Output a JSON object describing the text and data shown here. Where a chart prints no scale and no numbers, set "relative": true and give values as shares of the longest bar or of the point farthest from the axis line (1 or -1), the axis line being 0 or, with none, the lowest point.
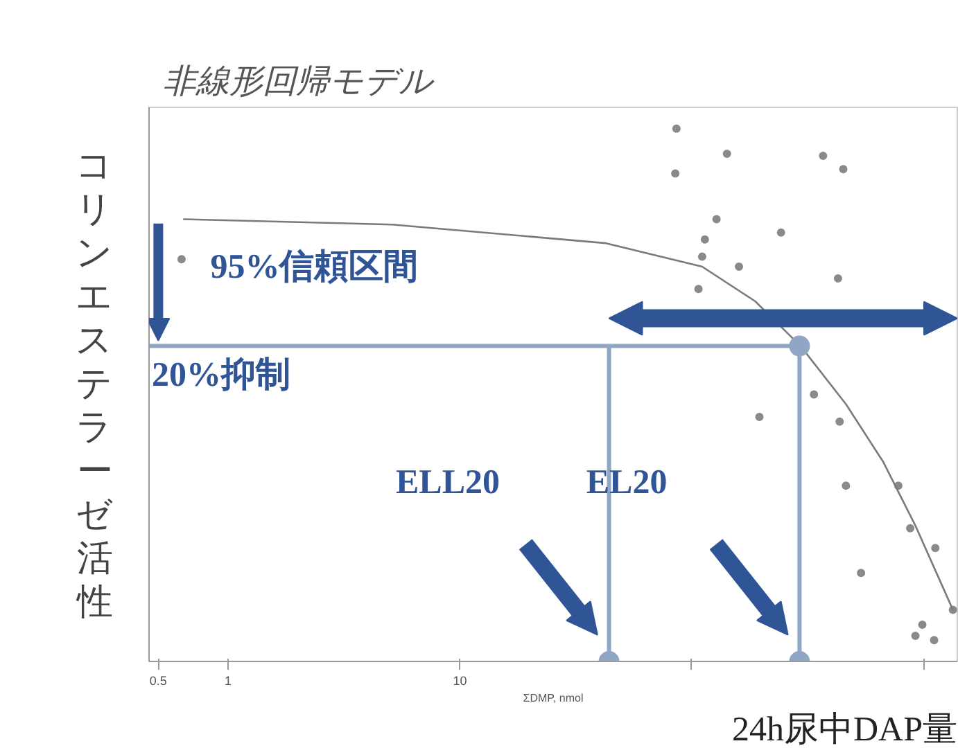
{
  "chart_data": {
    "type": "scatter",
    "title": "非線形回帰モデル",
    "xlabel": "ΣDMP, nmol",
    "ylabel": "コリンエステラーゼ活性",
    "relative": true,
    "log": "x",
    "grid": false,
    "marker": "circle",
    "xlim": [
      0.456,
      1400
    ],
    "xticks": [
      0.5,
      1,
      10,
      {
        "value": 100,
        "label": null
      },
      {
        "value": 1000,
        "label": null
      }
    ],
    "series": [
      {
        "color": "#8a8a8a",
        "x": [
          0.63,
          86,
          85,
          142,
          369,
          451,
          128,
          114,
          243,
          111,
          160,
          428,
          107,
          337,
          196,
          435,
          463,
          779,
          877,
          1125,
          538,
          1340,
          989,
          923,
          1112
        ],
        "values": [
          0.755,
          1.0,
          0.916,
          0.953,
          0.949,
          0.924,
          0.83,
          0.792,
          0.805,
          0.76,
          0.741,
          0.719,
          0.699,
          0.501,
          0.459,
          0.45,
          0.33,
          0.33,
          0.25,
          0.213,
          0.166,
          0.097,
          0.069,
          0.048,
          0.04
        ]
      },
      {
        "type": "line",
        "color": "#7a7a7a",
        "marker": "none",
        "x": [
          0.64,
          5.1,
          42.7,
          111,
          188,
          295,
          463,
          672,
          923,
          1340
        ],
        "values": [
          0.83,
          0.82,
          0.785,
          0.741,
          0.676,
          0.592,
          0.483,
          0.374,
          0.255,
          0.097
        ]
      },
      {
        "type": "line",
        "color": "#8fa6c4",
        "marker": "none",
        "x": [
          0.456,
          292,
          292
        ],
        "values": [
          0.592,
          0.592,
          0
        ]
      },
      {
        "type": "line",
        "color": "#8fa6c4",
        "marker": "none",
        "x": [
          44,
          44
        ],
        "values": [
          0.592,
          0
        ]
      },
      {
        "type": "scatter",
        "color": "#8fa6c4",
        "x": [
          44,
          292,
          292
        ],
        "values": [
          0,
          0,
          0.592
        ]
      }
    ],
    "annotations": [
      {
        "text": "20%抑制",
        "x": 0.456,
        "y": 0.592
      },
      "ELL20",
      "EL20",
      "24h尿中DAP量",
      "95%信頼区間"
    ]
  }
}
